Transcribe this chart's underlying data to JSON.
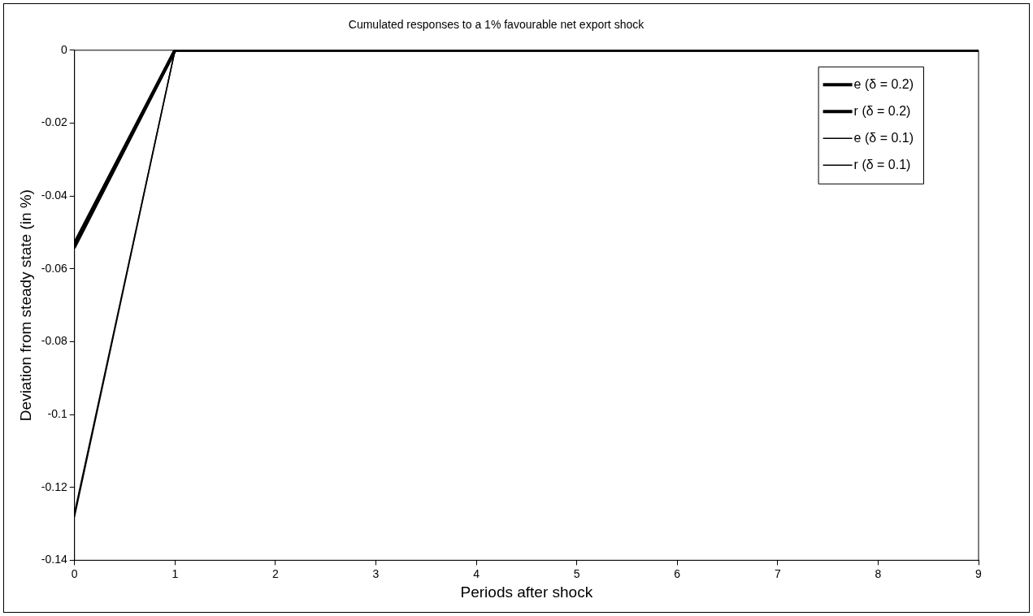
{
  "chart_data": {
    "type": "line",
    "title": "Cumulated responses to a 1% favourable net export shock",
    "xlabel": "Periods after shock",
    "ylabel": "Deviation from steady state (in %)",
    "x": [
      0,
      1,
      2,
      3,
      4,
      5,
      6,
      7,
      8,
      9
    ],
    "series": [
      {
        "name": "e (δ = 0.2)",
        "color": "#000000",
        "values": [
          -0.053,
          0,
          0,
          0,
          0,
          0,
          0,
          0,
          0,
          0
        ]
      },
      {
        "name": "r (δ = 0.2)",
        "color": "#000000",
        "values": [
          -0.054,
          0,
          0,
          0,
          0,
          0,
          0,
          0,
          0,
          0
        ]
      },
      {
        "name": "e (δ = 0.1)",
        "color": "#000000",
        "values": [
          -0.127,
          0,
          0,
          0,
          0,
          0,
          0,
          0,
          0,
          0
        ]
      },
      {
        "name": "r (δ = 0.1)",
        "color": "#000000",
        "values": [
          -0.128,
          0,
          0,
          0,
          0,
          0,
          0,
          0,
          0,
          0
        ]
      }
    ],
    "xlim": [
      0,
      9
    ],
    "xticks": [
      0,
      1,
      2,
      3,
      4,
      5,
      6,
      7,
      8,
      9
    ],
    "ylim": [
      -0.14,
      0
    ],
    "yticks": [
      -0.14,
      -0.12,
      -0.1,
      -0.08,
      -0.06,
      -0.04,
      -0.02,
      0
    ],
    "grid": false,
    "legend": "top right",
    "marker": "none",
    "line_style": "solid"
  }
}
